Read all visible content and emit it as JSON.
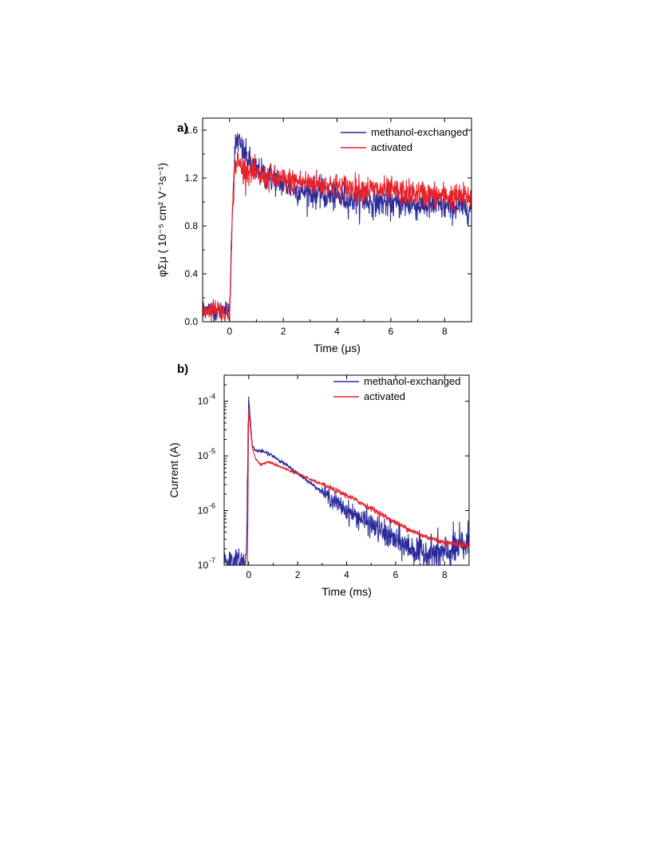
{
  "chart_data": [
    {
      "type": "line",
      "panel_label": "a)",
      "xlabel": "Time (μs)",
      "ylabel": "φΣμ ( 10⁻⁵ cm² V⁻¹s⁻¹)",
      "xlim": [
        -1,
        9
      ],
      "ylim": [
        0,
        1.7
      ],
      "x_ticks": [
        0,
        2,
        4,
        6,
        8
      ],
      "y_ticks": [
        0.0,
        0.4,
        0.8,
        1.2,
        1.6
      ],
      "y_tick_labels": [
        "0.0",
        "0.4",
        "0.8",
        "1.2",
        "1.6"
      ],
      "legend_position": "top-right",
      "series": [
        {
          "name": "methanol-exchanged",
          "color": "#2b2b9a",
          "x": [
            -1.0,
            -0.8,
            -0.5,
            -0.2,
            0.0,
            0.1,
            0.2,
            0.3,
            0.5,
            0.8,
            1.0,
            1.5,
            2.0,
            2.5,
            3.0,
            4.0,
            5.0,
            6.0,
            7.0,
            8.0,
            9.0
          ],
          "y": [
            0.1,
            0.12,
            0.08,
            0.11,
            0.08,
            0.9,
            1.45,
            1.52,
            1.42,
            1.32,
            1.26,
            1.2,
            1.15,
            1.1,
            1.08,
            1.04,
            1.01,
            0.99,
            0.97,
            0.96,
            0.95
          ]
        },
        {
          "name": "activated",
          "color": "#e8222a",
          "x": [
            -1.0,
            -0.8,
            -0.5,
            -0.2,
            0.0,
            0.1,
            0.2,
            0.3,
            0.5,
            0.8,
            1.0,
            1.5,
            2.0,
            2.5,
            3.0,
            4.0,
            5.0,
            6.0,
            7.0,
            8.0,
            9.0
          ],
          "y": [
            0.08,
            0.1,
            0.12,
            0.07,
            0.06,
            0.85,
            1.3,
            1.34,
            1.28,
            1.25,
            1.22,
            1.2,
            1.18,
            1.17,
            1.16,
            1.13,
            1.11,
            1.09,
            1.07,
            1.05,
            1.04
          ]
        }
      ]
    },
    {
      "type": "line",
      "panel_label": "b)",
      "xlabel": "Time (ms)",
      "ylabel": "Current (A)",
      "xlim": [
        -1,
        9
      ],
      "ylim": [
        1e-07,
        0.0003
      ],
      "yscale": "log",
      "x_ticks": [
        0,
        2,
        4,
        6,
        8
      ],
      "y_ticks": [
        1e-07,
        1e-06,
        1e-05,
        0.0001
      ],
      "y_tick_labels": [
        {
          "base": "10",
          "exp": "-7"
        },
        {
          "base": "10",
          "exp": "-6"
        },
        {
          "base": "10",
          "exp": "-5"
        },
        {
          "base": "10",
          "exp": "-4"
        }
      ],
      "legend_position": "top-right",
      "series": [
        {
          "name": "methanol-exchanged",
          "color": "#2b2b9a",
          "x": [
            -1.0,
            -0.5,
            -0.1,
            0.0,
            0.05,
            0.15,
            0.3,
            0.6,
            1.0,
            1.5,
            2.0,
            3.0,
            4.0,
            5.0,
            6.0,
            7.0,
            8.0,
            9.0
          ],
          "y": [
            1.3e-07,
            1.1e-07,
            1.2e-07,
            0.00012,
            6e-05,
            1.5e-05,
            1.25e-05,
            1.2e-05,
            1e-05,
            7e-06,
            4.8e-06,
            2.2e-06,
            1e-06,
            5.5e-07,
            2.8e-07,
            1.7e-07,
            1.6e-07,
            2.5e-07
          ]
        },
        {
          "name": "activated",
          "color": "#e8222a",
          "x": [
            -0.05,
            0.0,
            0.05,
            0.15,
            0.3,
            0.5,
            0.8,
            1.0,
            1.5,
            2.0,
            3.0,
            4.0,
            5.0,
            6.0,
            7.0,
            8.0,
            9.0
          ],
          "y": [
            1e-07,
            7e-05,
            4e-05,
            1.4e-05,
            8.5e-06,
            7e-06,
            7.8e-06,
            7.2e-06,
            5.8e-06,
            4.7e-06,
            3e-06,
            1.9e-06,
            1.1e-06,
            6e-07,
            3.6e-07,
            2.6e-07,
            2.3e-07
          ]
        }
      ]
    }
  ]
}
